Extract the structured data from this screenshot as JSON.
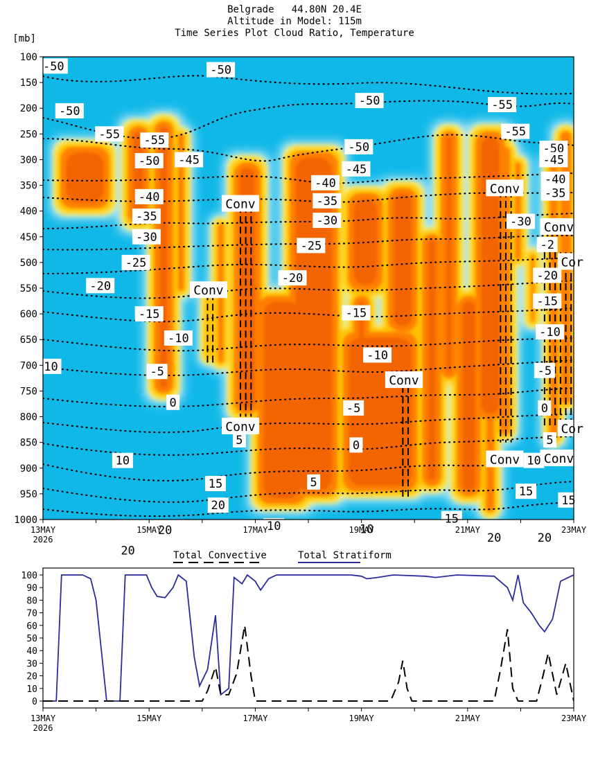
{
  "header": {
    "line1": "Belgrade   44.80N 20.4E",
    "line2": "Altitude in Model: 115m",
    "line3": "Time Series Plot Cloud Ratio, Temperature"
  },
  "colors": {
    "background_cloud_free": "#10b8e8",
    "cloud_low": "#a8e4f6",
    "cloud_mid": "#fff070",
    "cloud_high": "#ffc000",
    "cloud_max": "#ff8000",
    "cloud_peak": "#f26500",
    "convective_line": "#000000",
    "stratiform_line": "#2a2a9c"
  },
  "chart_data": [
    {
      "type": "heatmap",
      "title": "Time Series Plot Cloud Ratio, Temperature",
      "ylabel": "[mb]",
      "y_scale": "pressure (inverted)",
      "ylim": [
        1000,
        100
      ],
      "y_ticks": [
        "100",
        "150",
        "200",
        "250",
        "300",
        "350",
        "400",
        "450",
        "500",
        "550",
        "600",
        "650",
        "700",
        "750",
        "800",
        "850",
        "900",
        "950",
        "1000"
      ],
      "x_start_label": "13MAY",
      "x_year_label": "2026",
      "x_ticks": [
        "13MAY",
        "15MAY",
        "17MAY",
        "19MAY",
        "21MAY",
        "23MAY"
      ],
      "xlim_days": [
        13,
        23
      ],
      "grid": false,
      "cloud_columns": [
        {
          "t0": 13.28,
          "t1": 14.3,
          "top": 270,
          "bottom": 400
        },
        {
          "t0": 14.55,
          "t1": 15.05,
          "top": 230,
          "bottom": 430
        },
        {
          "t0": 15.05,
          "t1": 15.5,
          "top": 220,
          "bottom": 760
        },
        {
          "t0": 15.5,
          "t1": 15.7,
          "top": 245,
          "bottom": 560
        },
        {
          "t0": 16.05,
          "t1": 16.18,
          "top": 560,
          "bottom": 690
        },
        {
          "t0": 16.25,
          "t1": 16.45,
          "top": 420,
          "bottom": 700
        },
        {
          "t0": 16.55,
          "t1": 17.15,
          "top": 300,
          "bottom": 800
        },
        {
          "t0": 17.6,
          "t1": 18.6,
          "top": 280,
          "bottom": 960
        },
        {
          "t0": 17.0,
          "t1": 18.0,
          "top": 560,
          "bottom": 975
        },
        {
          "t0": 18.6,
          "t1": 20.1,
          "top": 630,
          "bottom": 950
        },
        {
          "t0": 18.7,
          "t1": 19.45,
          "top": 360,
          "bottom": 560
        },
        {
          "t0": 19.45,
          "t1": 20.1,
          "top": 350,
          "bottom": 640
        },
        {
          "t0": 18.8,
          "t1": 19.2,
          "top": 560,
          "bottom": 680
        },
        {
          "t0": 20.1,
          "t1": 20.55,
          "top": 440,
          "bottom": 940
        },
        {
          "t0": 20.45,
          "t1": 20.85,
          "top": 240,
          "bottom": 730
        },
        {
          "t0": 20.75,
          "t1": 21.3,
          "top": 560,
          "bottom": 960
        },
        {
          "t0": 21.1,
          "t1": 21.75,
          "top": 240,
          "bottom": 810
        },
        {
          "t0": 21.3,
          "t1": 21.55,
          "top": 780,
          "bottom": 990
        },
        {
          "t0": 21.55,
          "t1": 21.85,
          "top": 270,
          "bottom": 840
        },
        {
          "t0": 21.85,
          "t1": 22.05,
          "top": 300,
          "bottom": 500
        },
        {
          "t0": 22.15,
          "t1": 22.3,
          "top": 480,
          "bottom": 620
        },
        {
          "t0": 22.5,
          "t1": 22.75,
          "top": 300,
          "bottom": 850
        },
        {
          "t0": 22.7,
          "t1": 23.0,
          "top": 240,
          "bottom": 780
        }
      ],
      "convective_towers": [
        {
          "t0": 16.1,
          "t1": 16.2,
          "top": 560,
          "bottom": 700,
          "label": "Conv"
        },
        {
          "t0": 16.72,
          "t1": 16.92,
          "top": 390,
          "bottom": 800,
          "label": "Conv"
        },
        {
          "t0": 19.78,
          "t1": 19.88,
          "top": 740,
          "bottom": 960,
          "label": "Conv"
        },
        {
          "t0": 21.62,
          "t1": 21.82,
          "top": 360,
          "bottom": 850,
          "label": "Conv"
        },
        {
          "t0": 22.45,
          "t1": 22.95,
          "top": 480,
          "bottom": 820,
          "label": "Conv"
        }
      ],
      "conv_labels": [
        {
          "t": 16.72,
          "p": 385,
          "text": "Conv"
        },
        {
          "t": 16.12,
          "p": 553,
          "text": "Conv"
        },
        {
          "t": 16.72,
          "p": 818,
          "text": "Conv"
        },
        {
          "t": 19.8,
          "p": 728,
          "text": "Conv"
        },
        {
          "t": 21.7,
          "p": 355,
          "text": "Conv"
        },
        {
          "t": 21.7,
          "p": 882,
          "text": "Conv"
        },
        {
          "t": 22.72,
          "p": 430,
          "text": "Conv"
        },
        {
          "t": 22.97,
          "p": 498,
          "text": "Cor"
        },
        {
          "t": 22.97,
          "p": 822,
          "text": "Cor"
        },
        {
          "t": 22.72,
          "p": 880,
          "text": "Conv"
        }
      ],
      "isotherm_labels": [
        {
          "t": 13.2,
          "p": 118,
          "text": "-50"
        },
        {
          "t": 16.35,
          "p": 125,
          "text": "-50"
        },
        {
          "t": 19.15,
          "p": 185,
          "text": "-50"
        },
        {
          "t": 13.5,
          "p": 205,
          "text": "-50"
        },
        {
          "t": 14.25,
          "p": 250,
          "text": "-55"
        },
        {
          "t": 15.1,
          "p": 262,
          "text": "-55"
        },
        {
          "t": 21.65,
          "p": 193,
          "text": "-55"
        },
        {
          "t": 21.9,
          "p": 245,
          "text": "-55"
        },
        {
          "t": 15.0,
          "p": 302,
          "text": "-50"
        },
        {
          "t": 15.75,
          "p": 300,
          "text": "-45"
        },
        {
          "t": 18.95,
          "p": 275,
          "text": "-50"
        },
        {
          "t": 18.9,
          "p": 318,
          "text": "-45"
        },
        {
          "t": 22.62,
          "p": 278,
          "text": "-50"
        },
        {
          "t": 22.62,
          "p": 300,
          "text": "-45"
        },
        {
          "t": 22.65,
          "p": 338,
          "text": "-40"
        },
        {
          "t": 22.65,
          "p": 365,
          "text": "-35"
        },
        {
          "t": 15.0,
          "p": 372,
          "text": "-40"
        },
        {
          "t": 14.95,
          "p": 410,
          "text": "-35"
        },
        {
          "t": 14.95,
          "p": 450,
          "text": "-30"
        },
        {
          "t": 14.75,
          "p": 500,
          "text": "-25"
        },
        {
          "t": 14.08,
          "p": 545,
          "text": "-20"
        },
        {
          "t": 18.32,
          "p": 345,
          "text": "-40"
        },
        {
          "t": 18.35,
          "p": 380,
          "text": "-35"
        },
        {
          "t": 18.35,
          "p": 418,
          "text": "-30"
        },
        {
          "t": 18.05,
          "p": 467,
          "text": "-25"
        },
        {
          "t": 17.7,
          "p": 530,
          "text": "-20"
        },
        {
          "t": 18.9,
          "p": 598,
          "text": "-15"
        },
        {
          "t": 19.3,
          "p": 680,
          "text": "-10"
        },
        {
          "t": 18.85,
          "p": 783,
          "text": "-5"
        },
        {
          "t": 18.9,
          "p": 855,
          "text": "0"
        },
        {
          "t": 18.1,
          "p": 927,
          "text": "5"
        },
        {
          "t": 22.0,
          "p": 420,
          "text": "-30"
        },
        {
          "t": 22.5,
          "p": 465,
          "text": "-2"
        },
        {
          "t": 22.5,
          "p": 525,
          "text": "-20"
        },
        {
          "t": 22.5,
          "p": 575,
          "text": "-15"
        },
        {
          "t": 22.55,
          "p": 635,
          "text": "-10"
        },
        {
          "t": 22.45,
          "p": 710,
          "text": "-5"
        },
        {
          "t": 22.45,
          "p": 783,
          "text": "0"
        },
        {
          "t": 22.55,
          "p": 845,
          "text": "5"
        },
        {
          "t": 22.25,
          "p": 885,
          "text": "10"
        },
        {
          "t": 22.1,
          "p": 945,
          "text": "15"
        },
        {
          "t": 22.45,
          "p": 1035,
          "text": "20"
        },
        {
          "t": 22.9,
          "p": 962,
          "text": "15"
        },
        {
          "t": 15.0,
          "p": 600,
          "text": "-15"
        },
        {
          "t": 15.55,
          "p": 647,
          "text": "-10"
        },
        {
          "t": 15.15,
          "p": 712,
          "text": "-5"
        },
        {
          "t": 15.45,
          "p": 772,
          "text": "0"
        },
        {
          "t": 16.7,
          "p": 845,
          "text": "5"
        },
        {
          "t": 14.5,
          "p": 885,
          "text": "10"
        },
        {
          "t": 16.25,
          "p": 930,
          "text": "15"
        },
        {
          "t": 16.3,
          "p": 972,
          "text": "20"
        },
        {
          "t": 15.3,
          "p": 1020,
          "text": "20"
        },
        {
          "t": 14.6,
          "p": 1060,
          "text": "20"
        },
        {
          "t": 13.15,
          "p": 702,
          "text": "10"
        },
        {
          "t": 17.35,
          "p": 1012,
          "text": "10"
        },
        {
          "t": 19.1,
          "p": 1018,
          "text": "10"
        },
        {
          "t": 20.7,
          "p": 998,
          "text": "15"
        },
        {
          "t": 21.5,
          "p": 1035,
          "text": "20"
        }
      ]
    },
    {
      "type": "line",
      "ylabel": "",
      "ylim": [
        0,
        100
      ],
      "y_ticks": [
        "0",
        "10",
        "20",
        "30",
        "40",
        "50",
        "60",
        "70",
        "80",
        "90",
        "100"
      ],
      "x_start_label": "13MAY",
      "x_year_label": "2026",
      "x_ticks": [
        "13MAY",
        "15MAY",
        "17MAY",
        "19MAY",
        "21MAY",
        "23MAY"
      ],
      "xlim_days": [
        13,
        23
      ],
      "legend_position": "top-center",
      "series": [
        {
          "name": "Total Convective",
          "style": "dashed",
          "points": [
            [
              13.0,
              0
            ],
            [
              16.0,
              0
            ],
            [
              16.1,
              8
            ],
            [
              16.25,
              27
            ],
            [
              16.35,
              5
            ],
            [
              16.5,
              5
            ],
            [
              16.65,
              22
            ],
            [
              16.8,
              60
            ],
            [
              16.92,
              20
            ],
            [
              17.0,
              0
            ],
            [
              19.55,
              0
            ],
            [
              19.7,
              15
            ],
            [
              19.78,
              32
            ],
            [
              19.86,
              10
            ],
            [
              19.95,
              0
            ],
            [
              21.5,
              0
            ],
            [
              21.62,
              25
            ],
            [
              21.75,
              57
            ],
            [
              21.85,
              10
            ],
            [
              21.95,
              0
            ],
            [
              22.3,
              0
            ],
            [
              22.42,
              20
            ],
            [
              22.52,
              38
            ],
            [
              22.68,
              5
            ],
            [
              22.85,
              30
            ],
            [
              23.0,
              0
            ]
          ]
        },
        {
          "name": "Total Stratiform",
          "style": "solid",
          "points": [
            [
              13.0,
              0
            ],
            [
              13.25,
              0
            ],
            [
              13.35,
              100
            ],
            [
              13.75,
              100
            ],
            [
              13.9,
              97
            ],
            [
              14.0,
              80
            ],
            [
              14.1,
              40
            ],
            [
              14.2,
              0
            ],
            [
              14.45,
              0
            ],
            [
              14.55,
              100
            ],
            [
              14.95,
              100
            ],
            [
              15.05,
              90
            ],
            [
              15.15,
              83
            ],
            [
              15.3,
              82
            ],
            [
              15.45,
              90
            ],
            [
              15.55,
              100
            ],
            [
              15.7,
              95
            ],
            [
              15.85,
              35
            ],
            [
              15.95,
              12
            ],
            [
              16.1,
              25
            ],
            [
              16.25,
              68
            ],
            [
              16.35,
              5
            ],
            [
              16.5,
              10
            ],
            [
              16.6,
              98
            ],
            [
              16.75,
              93
            ],
            [
              16.85,
              100
            ],
            [
              17.0,
              95
            ],
            [
              17.1,
              88
            ],
            [
              17.25,
              97
            ],
            [
              17.4,
              100
            ],
            [
              18.8,
              100
            ],
            [
              19.0,
              99
            ],
            [
              19.1,
              97
            ],
            [
              19.3,
              98
            ],
            [
              19.6,
              100
            ],
            [
              20.2,
              99
            ],
            [
              20.4,
              98
            ],
            [
              20.8,
              100
            ],
            [
              21.5,
              99
            ],
            [
              21.75,
              90
            ],
            [
              21.85,
              80
            ],
            [
              21.95,
              100
            ],
            [
              22.05,
              78
            ],
            [
              22.2,
              70
            ],
            [
              22.35,
              60
            ],
            [
              22.45,
              55
            ],
            [
              22.6,
              65
            ],
            [
              22.75,
              95
            ],
            [
              22.9,
              98
            ],
            [
              23.0,
              100
            ]
          ]
        }
      ]
    }
  ]
}
